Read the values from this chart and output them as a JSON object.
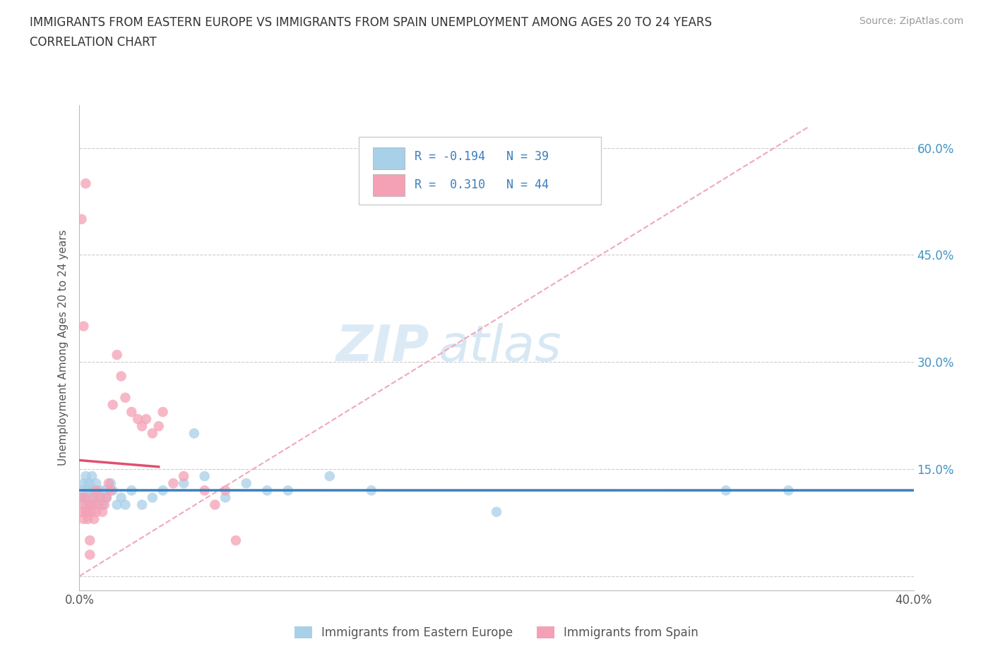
{
  "title_line1": "IMMIGRANTS FROM EASTERN EUROPE VS IMMIGRANTS FROM SPAIN UNEMPLOYMENT AMONG AGES 20 TO 24 YEARS",
  "title_line2": "CORRELATION CHART",
  "source_text": "Source: ZipAtlas.com",
  "ylabel": "Unemployment Among Ages 20 to 24 years",
  "xlim": [
    0.0,
    0.4
  ],
  "ylim": [
    -0.02,
    0.66
  ],
  "xticks": [
    0.0,
    0.05,
    0.1,
    0.15,
    0.2,
    0.25,
    0.3,
    0.35,
    0.4
  ],
  "yticks": [
    0.0,
    0.15,
    0.3,
    0.45,
    0.6
  ],
  "blue_color": "#A8D0E8",
  "pink_color": "#F4A0B5",
  "blue_line_color": "#3A7FBD",
  "pink_line_color": "#E05070",
  "diag_color": "#F0A8B8",
  "watermark_zip": "ZIP",
  "watermark_atlas": "atlas",
  "legend_label_blue": "Immigrants from Eastern Europe",
  "legend_label_pink": "Immigrants from Spain",
  "blue_x": [
    0.001,
    0.002,
    0.002,
    0.003,
    0.003,
    0.004,
    0.004,
    0.005,
    0.005,
    0.006,
    0.006,
    0.007,
    0.008,
    0.009,
    0.01,
    0.011,
    0.012,
    0.013,
    0.015,
    0.016,
    0.018,
    0.02,
    0.022,
    0.025,
    0.03,
    0.035,
    0.04,
    0.05,
    0.055,
    0.06,
    0.07,
    0.08,
    0.09,
    0.1,
    0.12,
    0.14,
    0.2,
    0.31,
    0.34
  ],
  "blue_y": [
    0.12,
    0.11,
    0.13,
    0.1,
    0.14,
    0.12,
    0.13,
    0.11,
    0.13,
    0.12,
    0.14,
    0.1,
    0.13,
    0.11,
    0.12,
    0.1,
    0.12,
    0.11,
    0.13,
    0.12,
    0.1,
    0.11,
    0.1,
    0.12,
    0.1,
    0.11,
    0.12,
    0.13,
    0.2,
    0.14,
    0.11,
    0.13,
    0.12,
    0.12,
    0.14,
    0.12,
    0.09,
    0.12,
    0.12
  ],
  "pink_x": [
    0.001,
    0.001,
    0.002,
    0.002,
    0.003,
    0.003,
    0.004,
    0.004,
    0.005,
    0.005,
    0.006,
    0.006,
    0.007,
    0.007,
    0.008,
    0.008,
    0.009,
    0.01,
    0.011,
    0.012,
    0.013,
    0.014,
    0.015,
    0.016,
    0.018,
    0.02,
    0.022,
    0.025,
    0.028,
    0.03,
    0.032,
    0.035,
    0.038,
    0.04,
    0.045,
    0.05,
    0.06,
    0.065,
    0.07,
    0.075,
    0.001,
    0.002,
    0.003,
    0.005
  ],
  "pink_y": [
    0.09,
    0.11,
    0.08,
    0.1,
    0.09,
    0.11,
    0.08,
    0.09,
    0.1,
    0.05,
    0.09,
    0.1,
    0.08,
    0.11,
    0.09,
    0.12,
    0.1,
    0.11,
    0.09,
    0.1,
    0.11,
    0.13,
    0.12,
    0.24,
    0.31,
    0.28,
    0.25,
    0.23,
    0.22,
    0.21,
    0.22,
    0.2,
    0.21,
    0.23,
    0.13,
    0.14,
    0.12,
    0.1,
    0.12,
    0.05,
    0.5,
    0.35,
    0.55,
    0.03
  ]
}
